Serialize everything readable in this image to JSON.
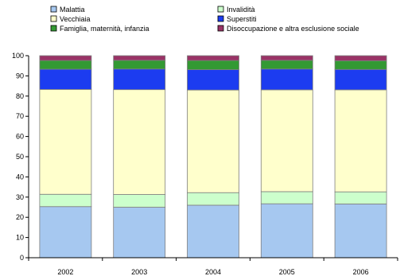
{
  "chart_data": {
    "type": "bar",
    "stacked": true,
    "categories": [
      "2002",
      "2003",
      "2004",
      "2005",
      "2006"
    ],
    "ylim": [
      0,
      100
    ],
    "yticks": [
      0,
      10,
      20,
      30,
      40,
      50,
      60,
      70,
      80,
      90,
      100
    ],
    "legend_position": "top",
    "grid": false,
    "series": [
      {
        "name": "Malattia",
        "color": "#a6c8f0",
        "values": [
          25.3,
          25.0,
          26.0,
          26.7,
          26.6
        ]
      },
      {
        "name": "Invalidità",
        "color": "#ccffcc",
        "values": [
          6.1,
          6.3,
          6.2,
          6.0,
          6.0
        ]
      },
      {
        "name": "Vecchiaia",
        "color": "#ffffcc",
        "values": [
          51.9,
          51.9,
          50.8,
          50.4,
          50.5
        ]
      },
      {
        "name": "Superstiti",
        "color": "#1c3cf0",
        "values": [
          10.0,
          10.2,
          10.1,
          10.3,
          10.1
        ]
      },
      {
        "name": "Famiglia, maternità, infanzia",
        "color": "#339933",
        "values": [
          4.3,
          4.3,
          4.5,
          4.3,
          4.3
        ]
      },
      {
        "name": "Disoccupazione e altra esclusione sociale",
        "color": "#993366",
        "values": [
          2.4,
          2.3,
          2.4,
          2.3,
          2.5
        ]
      }
    ]
  }
}
